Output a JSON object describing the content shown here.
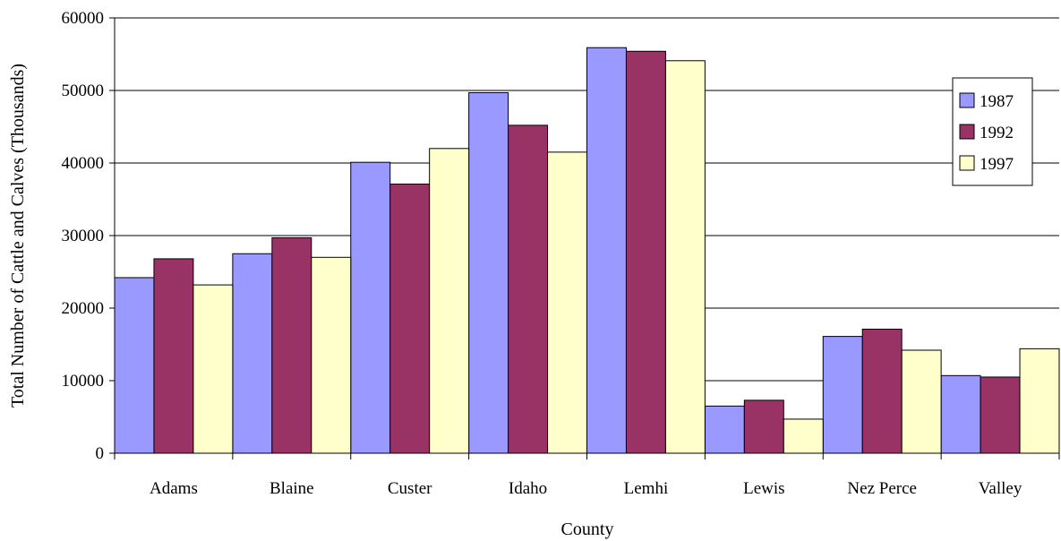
{
  "chart_data": {
    "type": "bar",
    "title": "",
    "xlabel": "County",
    "ylabel": "Total Number of Cattle and Calves (Thousands)",
    "categories": [
      "Adams",
      "Blaine",
      "Custer",
      "Idaho",
      "Lemhi",
      "Lewis",
      "Nez Perce",
      "Valley"
    ],
    "series": [
      {
        "name": "1987",
        "color": "#9999ff",
        "values": [
          24200,
          27500,
          40100,
          49700,
          55900,
          6500,
          16100,
          10700
        ]
      },
      {
        "name": "1992",
        "color": "#993366",
        "values": [
          26800,
          29700,
          37100,
          45200,
          55400,
          7300,
          17100,
          10500
        ]
      },
      {
        "name": "1997",
        "color": "#ffffcc",
        "values": [
          23200,
          27000,
          42000,
          41500,
          54100,
          4700,
          14200,
          14400
        ]
      }
    ],
    "ylim": [
      0,
      60000
    ],
    "yticks": [
      0,
      10000,
      20000,
      30000,
      40000,
      50000,
      60000
    ],
    "grid": true,
    "legend_position": "right"
  }
}
